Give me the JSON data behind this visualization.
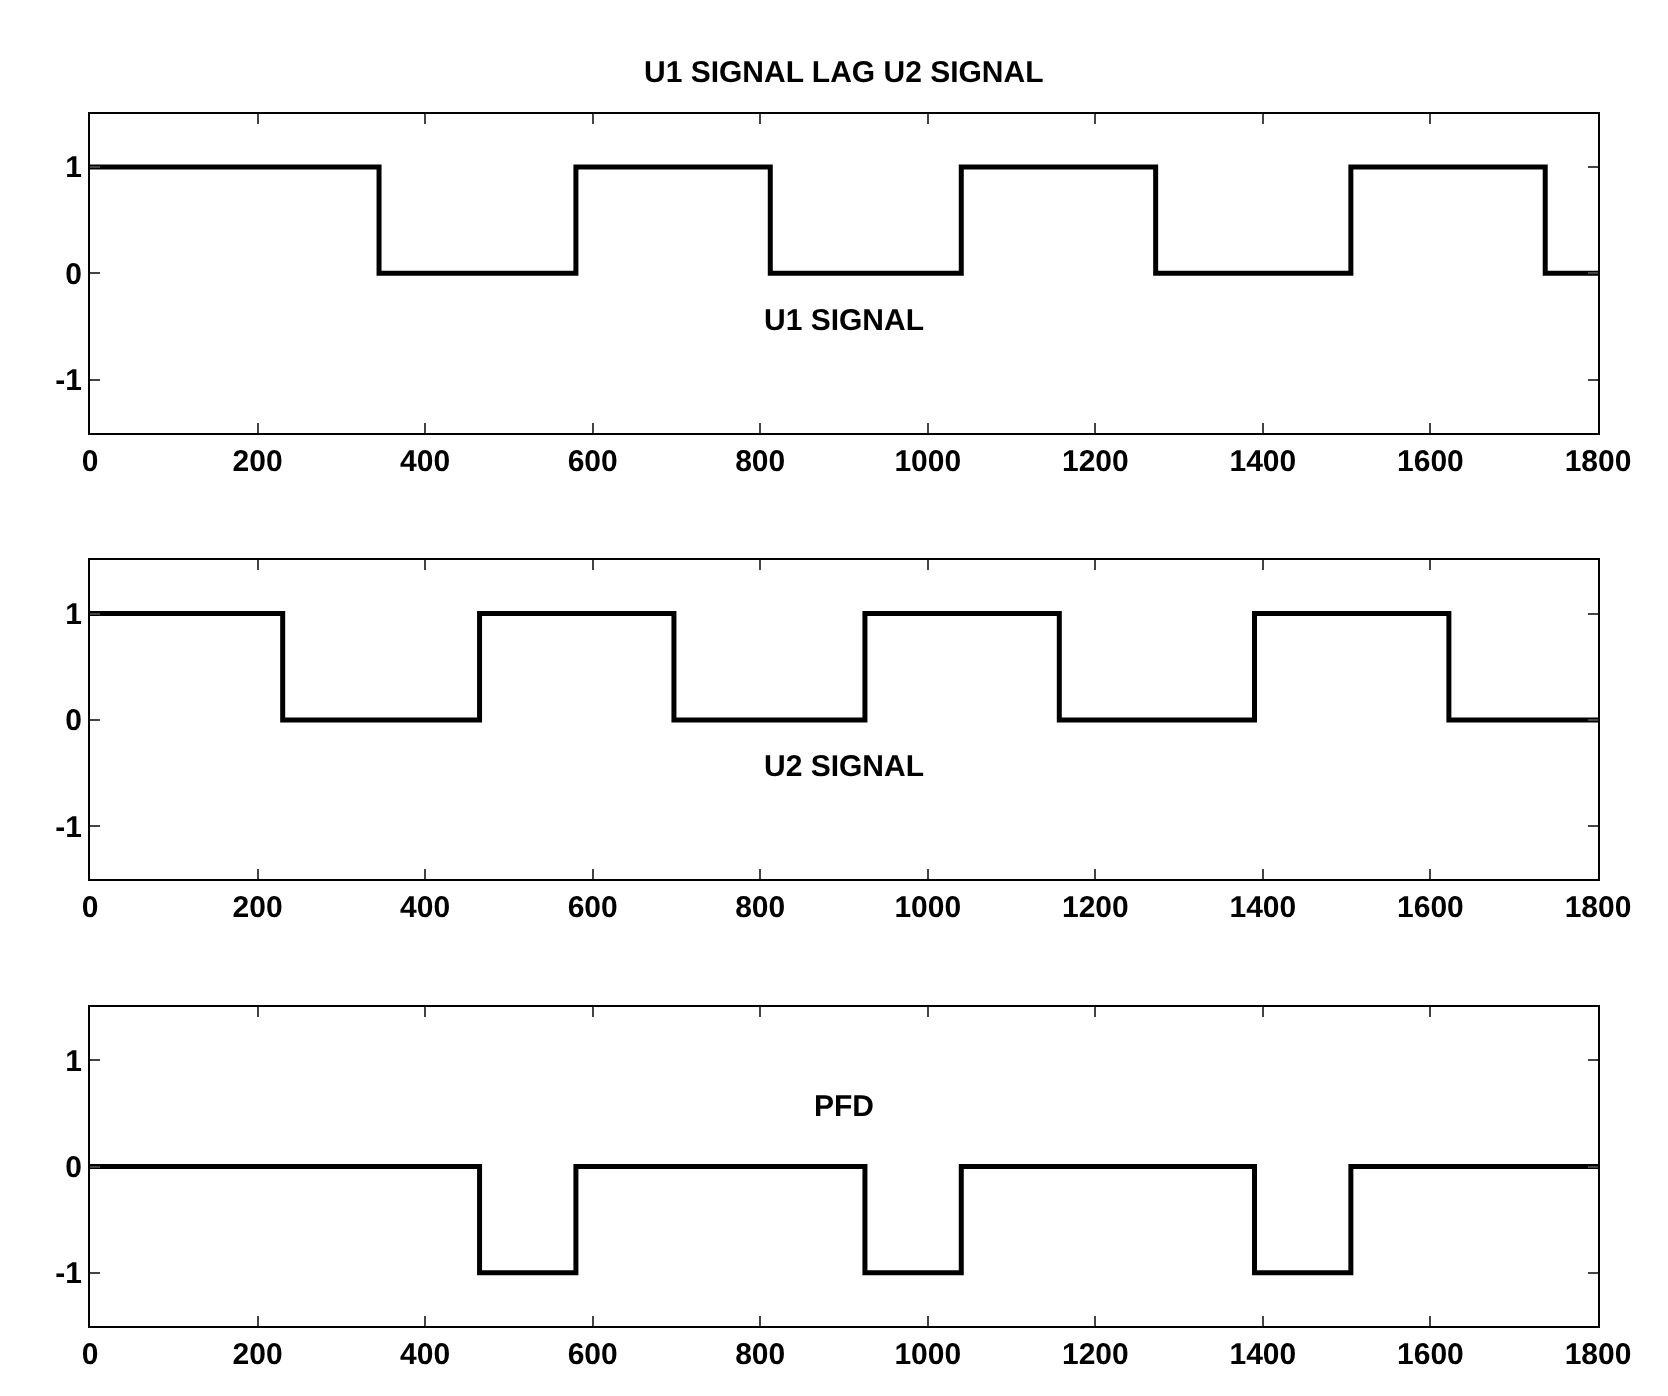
{
  "chart_data": [
    {
      "type": "step",
      "title": "U1 SIGNAL LAG U2 SIGNAL",
      "annotations": [
        "U1 SIGNAL"
      ],
      "x": [
        0,
        345,
        580,
        812,
        1040,
        1272,
        1505,
        1737,
        1800
      ],
      "series": [
        {
          "color": "#000000",
          "values": [
            1,
            0,
            1,
            0,
            1,
            0,
            1,
            0,
            0
          ]
        }
      ],
      "xlim": [
        0,
        1800
      ],
      "xticks": [
        0,
        200,
        400,
        600,
        800,
        1000,
        1200,
        1400,
        1600,
        1800
      ],
      "ylim": [
        -1.5,
        1.5
      ],
      "yticks": [
        -1,
        0,
        1
      ]
    },
    {
      "type": "step",
      "annotations": [
        "U2 SIGNAL"
      ],
      "x": [
        0,
        230,
        465,
        697,
        925,
        1157,
        1390,
        1622,
        1800
      ],
      "series": [
        {
          "color": "#000000",
          "values": [
            1,
            0,
            1,
            0,
            1,
            0,
            1,
            0,
            0
          ]
        }
      ],
      "xlim": [
        0,
        1800
      ],
      "xticks": [
        0,
        200,
        400,
        600,
        800,
        1000,
        1200,
        1400,
        1600,
        1800
      ],
      "ylim": [
        -1.5,
        1.5
      ],
      "yticks": [
        -1,
        0,
        1
      ]
    },
    {
      "type": "step",
      "annotations": [
        "PFD"
      ],
      "x": [
        0,
        465,
        580,
        925,
        1040,
        1390,
        1505,
        1800
      ],
      "series": [
        {
          "color": "#000000",
          "values": [
            0,
            -1,
            0,
            -1,
            0,
            -1,
            0,
            0
          ]
        }
      ],
      "xlim": [
        0,
        1800
      ],
      "xticks": [
        0,
        200,
        400,
        600,
        800,
        1000,
        1200,
        1400,
        1600,
        1800
      ],
      "ylim": [
        -1.5,
        1.5
      ],
      "yticks": [
        -1,
        0,
        1
      ]
    }
  ]
}
